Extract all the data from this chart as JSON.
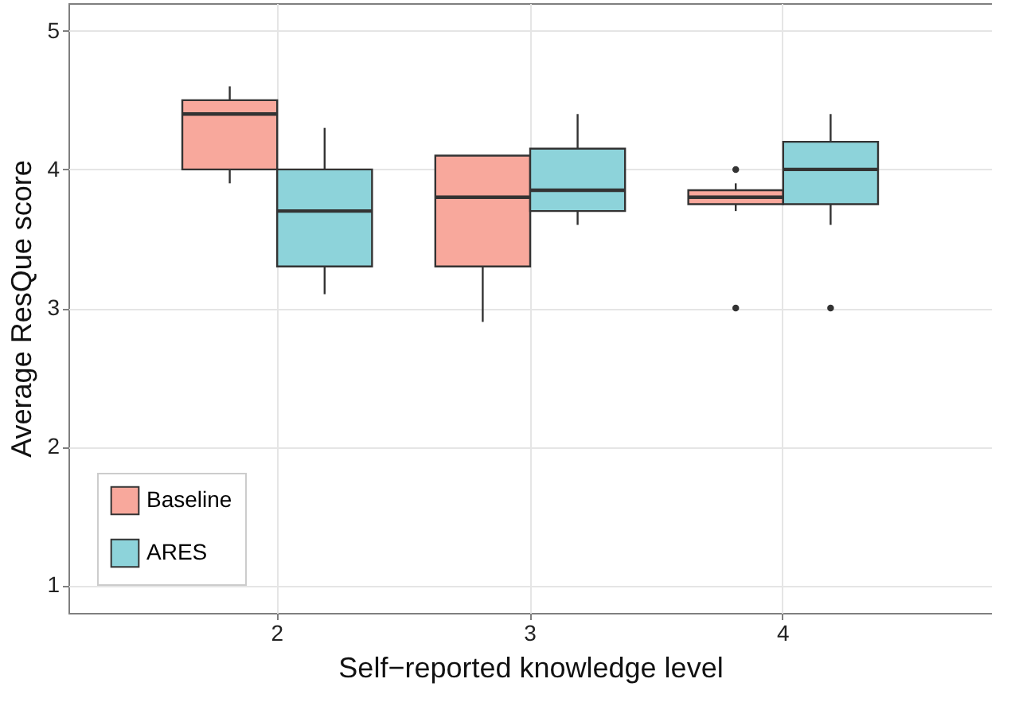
{
  "chart_data": {
    "type": "box",
    "xlabel": "Self−reported knowledge level",
    "ylabel": "Average ResQue score",
    "categories": [
      "2",
      "3",
      "4"
    ],
    "series": [
      {
        "name": "Baseline",
        "color": "#f8a89c",
        "boxes": [
          {
            "low": 3.9,
            "q1": 4.0,
            "median": 4.4,
            "q3": 4.5,
            "high": 4.6
          },
          {
            "low": 2.9,
            "q1": 3.3,
            "median": 3.8,
            "q3": 4.1,
            "high": 4.1
          },
          {
            "low": 3.7,
            "q1": 3.75,
            "median": 3.8,
            "q3": 3.85,
            "high": 3.9,
            "outliers": [
              4.0,
              3.0
            ]
          }
        ]
      },
      {
        "name": "ARES",
        "color": "#8dd3da",
        "boxes": [
          {
            "low": 3.1,
            "q1": 3.3,
            "median": 3.7,
            "q3": 4.0,
            "high": 4.3
          },
          {
            "low": 3.6,
            "q1": 3.7,
            "median": 3.85,
            "q3": 4.15,
            "high": 4.4
          },
          {
            "low": 3.6,
            "q1": 3.75,
            "median": 4.0,
            "q3": 4.2,
            "high": 4.4,
            "outliers": [
              3.0
            ]
          }
        ]
      }
    ],
    "ylim": [
      0.8,
      5.2
    ],
    "yticks": [
      1,
      2,
      3,
      4,
      5
    ],
    "grid": true,
    "legend": "bottom left"
  }
}
